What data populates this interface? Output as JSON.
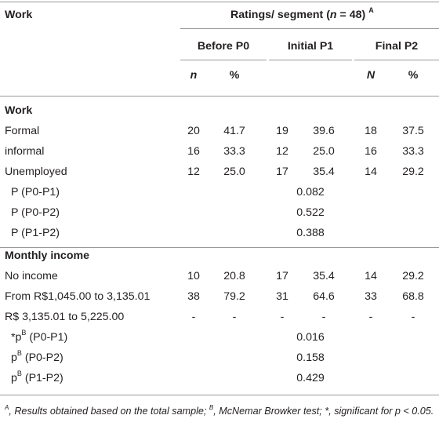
{
  "header": {
    "work_label": "Work",
    "ratings_prefix": "Ratings/ segment (",
    "ratings_n": "n",
    "ratings_eq": " = 48)",
    "ratings_sup": "A",
    "groups": [
      "Before P0",
      "Initial P1",
      "Final P2"
    ],
    "sub": [
      "n",
      "%",
      "N",
      "%"
    ]
  },
  "sections": {
    "work": "Work",
    "income": "Monthly income"
  },
  "work_rows": [
    {
      "label": "Formal",
      "v": [
        "20",
        "41.7",
        "19",
        "39.6",
        "18",
        "37.5"
      ]
    },
    {
      "label": "informal",
      "v": [
        "16",
        "33.3",
        "12",
        "25.0",
        "16",
        "33.3"
      ]
    },
    {
      "label": "Unemployed",
      "v": [
        "12",
        "25.0",
        "17",
        "35.4",
        "14",
        "29.2"
      ]
    }
  ],
  "work_p": [
    {
      "label": "P (P0-P1)",
      "value": "0.082"
    },
    {
      "label": "P (P0-P2)",
      "value": "0.522"
    },
    {
      "label": "P (P1-P2)",
      "value": "0.388"
    }
  ],
  "income_rows": [
    {
      "label": "No income",
      "v": [
        "10",
        "20.8",
        "17",
        "35.4",
        "14",
        "29.2"
      ]
    },
    {
      "label": "From R$1,045.00 to 3,135.01",
      "v": [
        "38",
        "79.2",
        "31",
        "64.6",
        "33",
        "68.8"
      ]
    },
    {
      "label": "R$ 3,135.01 to 5,225.00",
      "v": [
        "-",
        "-",
        "-",
        "-",
        "-",
        "-"
      ]
    }
  ],
  "income_p": [
    {
      "pre": "*p",
      "sup": "B",
      "post": " (P0-P1)",
      "value": "0.016"
    },
    {
      "pre": "p",
      "sup": "B",
      "post": " (P0-P2)",
      "value": "0.158"
    },
    {
      "pre": "p",
      "sup": "B",
      "post": " (P1-P2)",
      "value": "0.429"
    }
  ],
  "footnote": {
    "a_sup": "A",
    "a_text": ", Results obtained based on the total sample; ",
    "b_sup": "B",
    "b_text": ", McNemar Browker test; *, significant for p < 0.05."
  }
}
